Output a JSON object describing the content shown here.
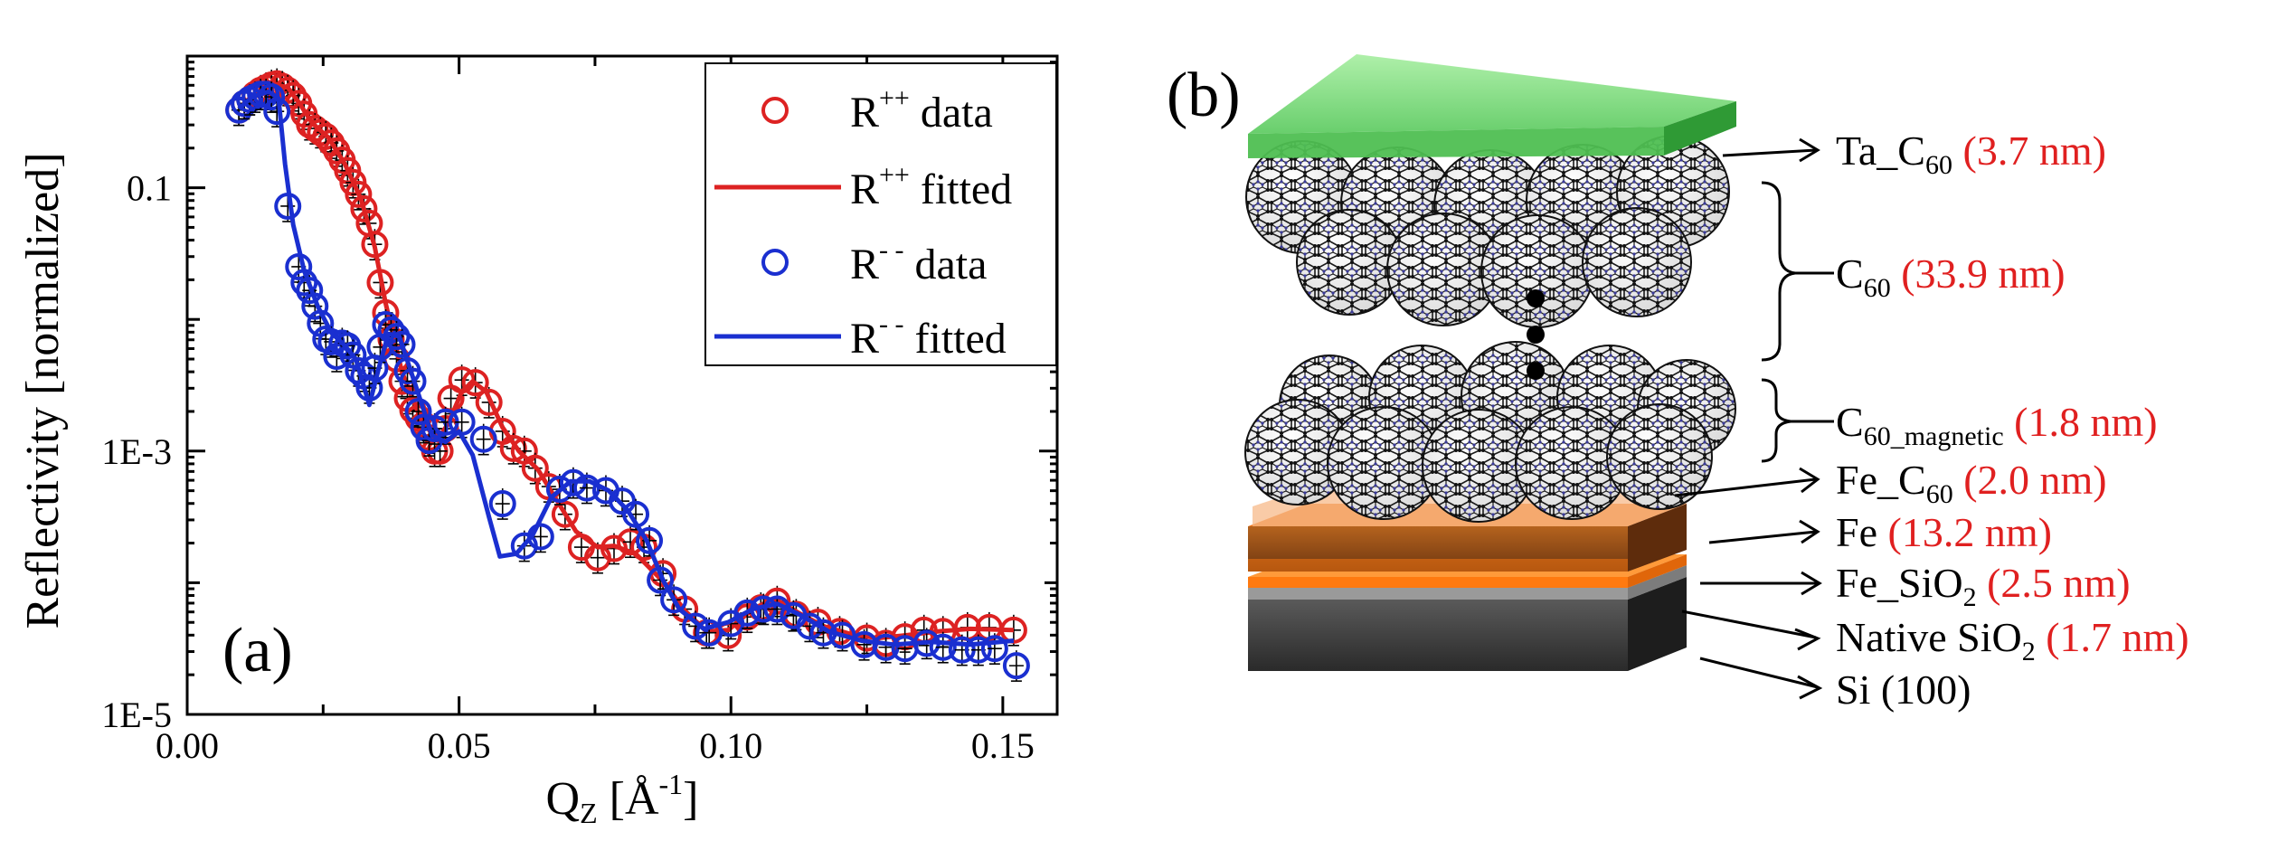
{
  "panel_a": {
    "label": "(a)",
    "chart_data": {
      "type": "line",
      "xlabel": "Q",
      "xlabel_sub": "Z",
      "xlabel_unit": "[Å",
      "xlabel_unit_sup": "-1",
      "xlabel_unit_close": "]",
      "ylabel": "Reflectivity [normalized]",
      "xlim": [
        0.0,
        0.16
      ],
      "ylim_log10": [
        -5,
        0
      ],
      "yscale": "log",
      "x_ticks": [
        {
          "value": 0.0,
          "label": "0.00"
        },
        {
          "value": 0.05,
          "label": "0.05"
        },
        {
          "value": 0.1,
          "label": "0.10"
        },
        {
          "value": 0.15,
          "label": "0.15"
        }
      ],
      "y_ticks": [
        {
          "log10": -1,
          "label": "0.1"
        },
        {
          "log10": -3,
          "label": "1E-3"
        },
        {
          "log10": -5,
          "label": "1E-5"
        }
      ],
      "legend": {
        "position": "top-right",
        "entries": [
          {
            "series": "rpp_data",
            "base": "R",
            "sup": "++",
            "suffix": " data"
          },
          {
            "series": "rpp_fit",
            "base": "R",
            "sup": "++",
            "suffix": " fitted"
          },
          {
            "series": "rmm_data",
            "base": "R",
            "sup": "- -",
            "suffix": " data"
          },
          {
            "series": "rmm_fit",
            "base": "R",
            "sup": "- -",
            "suffix": " fitted"
          }
        ]
      },
      "series": [
        {
          "id": "rpp_data",
          "name": "R++ data",
          "kind": "markers",
          "color": "#dd2222",
          "points": [
            [
              0.0095,
              -0.41
            ],
            [
              0.0105,
              -0.36
            ],
            [
              0.0115,
              -0.33
            ],
            [
              0.0125,
              -0.29
            ],
            [
              0.0135,
              -0.26
            ],
            [
              0.0145,
              -0.24
            ],
            [
              0.0155,
              -0.22
            ],
            [
              0.0165,
              -0.21
            ],
            [
              0.0175,
              -0.23
            ],
            [
              0.0185,
              -0.26
            ],
            [
              0.0195,
              -0.3
            ],
            [
              0.0205,
              -0.36
            ],
            [
              0.0215,
              -0.44
            ],
            [
              0.0225,
              -0.52
            ],
            [
              0.0235,
              -0.55
            ],
            [
              0.0245,
              -0.58
            ],
            [
              0.0255,
              -0.61
            ],
            [
              0.0265,
              -0.66
            ],
            [
              0.0275,
              -0.72
            ],
            [
              0.0285,
              -0.79
            ],
            [
              0.0295,
              -0.87
            ],
            [
              0.0305,
              -0.96
            ],
            [
              0.0315,
              -1.05
            ],
            [
              0.0325,
              -1.16
            ],
            [
              0.0335,
              -1.27
            ],
            [
              0.0345,
              -1.43
            ],
            [
              0.0355,
              -1.72
            ],
            [
              0.0365,
              -1.95
            ],
            [
              0.0375,
              -2.15
            ],
            [
              0.0385,
              -2.3
            ],
            [
              0.0395,
              -2.47
            ],
            [
              0.0405,
              -2.6
            ],
            [
              0.0415,
              -2.69
            ],
            [
              0.0425,
              -2.75
            ],
            [
              0.0435,
              -2.8
            ],
            [
              0.0445,
              -2.9
            ],
            [
              0.0455,
              -3.0
            ],
            [
              0.0465,
              -3.0
            ],
            [
              0.0475,
              -2.83
            ],
            [
              0.0485,
              -2.6
            ],
            [
              0.0505,
              -2.46
            ],
            [
              0.053,
              -2.48
            ],
            [
              0.0555,
              -2.63
            ],
            [
              0.058,
              -2.85
            ],
            [
              0.06,
              -2.98
            ],
            [
              0.062,
              -3.0
            ],
            [
              0.064,
              -3.13
            ],
            [
              0.0665,
              -3.27
            ],
            [
              0.0695,
              -3.48
            ],
            [
              0.0725,
              -3.73
            ],
            [
              0.0755,
              -3.81
            ],
            [
              0.0785,
              -3.74
            ],
            [
              0.0815,
              -3.69
            ],
            [
              0.084,
              -3.73
            ],
            [
              0.0875,
              -3.93
            ],
            [
              0.0915,
              -4.2
            ],
            [
              0.0955,
              -4.38
            ],
            [
              0.0995,
              -4.4
            ],
            [
              0.103,
              -4.26
            ],
            [
              0.1055,
              -4.19
            ],
            [
              0.1085,
              -4.14
            ],
            [
              0.112,
              -4.24
            ],
            [
              0.116,
              -4.3
            ],
            [
              0.12,
              -4.37
            ],
            [
              0.125,
              -4.42
            ],
            [
              0.1285,
              -4.46
            ],
            [
              0.132,
              -4.41
            ],
            [
              0.1355,
              -4.36
            ],
            [
              0.139,
              -4.37
            ],
            [
              0.1435,
              -4.34
            ],
            [
              0.1475,
              -4.34
            ],
            [
              0.152,
              -4.36
            ]
          ]
        },
        {
          "id": "rpp_fit",
          "name": "R++ fitted",
          "kind": "line",
          "color": "#dd2222",
          "points": [
            [
              0.0095,
              -0.4
            ],
            [
              0.012,
              -0.3
            ],
            [
              0.016,
              -0.21
            ],
            [
              0.0185,
              -0.24
            ],
            [
              0.0205,
              -0.35
            ],
            [
              0.023,
              -0.51
            ],
            [
              0.026,
              -0.62
            ],
            [
              0.029,
              -0.82
            ],
            [
              0.032,
              -1.09
            ],
            [
              0.0345,
              -1.45
            ],
            [
              0.0365,
              -1.88
            ],
            [
              0.0395,
              -2.4
            ],
            [
              0.043,
              -2.76
            ],
            [
              0.046,
              -2.92
            ],
            [
              0.048,
              -2.79
            ],
            [
              0.0505,
              -2.55
            ],
            [
              0.0525,
              -2.47
            ],
            [
              0.055,
              -2.55
            ],
            [
              0.058,
              -2.82
            ],
            [
              0.061,
              -3.0
            ],
            [
              0.0645,
              -3.14
            ],
            [
              0.0685,
              -3.41
            ],
            [
              0.0715,
              -3.61
            ],
            [
              0.0755,
              -3.73
            ],
            [
              0.0785,
              -3.72
            ],
            [
              0.0825,
              -3.78
            ],
            [
              0.0875,
              -3.99
            ],
            [
              0.0915,
              -4.21
            ],
            [
              0.0955,
              -4.37
            ],
            [
              0.0995,
              -4.36
            ],
            [
              0.104,
              -4.2
            ],
            [
              0.108,
              -4.12
            ],
            [
              0.1125,
              -4.23
            ],
            [
              0.117,
              -4.33
            ],
            [
              0.122,
              -4.39
            ],
            [
              0.127,
              -4.42
            ],
            [
              0.132,
              -4.4
            ],
            [
              0.138,
              -4.37
            ],
            [
              0.144,
              -4.35
            ],
            [
              0.152,
              -4.36
            ]
          ]
        },
        {
          "id": "rmm_data",
          "name": "R-- data",
          "kind": "markers",
          "color": "#1a2fd0",
          "points": [
            [
              0.0095,
              -0.41
            ],
            [
              0.0105,
              -0.36
            ],
            [
              0.0115,
              -0.33
            ],
            [
              0.0125,
              -0.31
            ],
            [
              0.0135,
              -0.29
            ],
            [
              0.0145,
              -0.29
            ],
            [
              0.0155,
              -0.31
            ],
            [
              0.0165,
              -0.42
            ],
            [
              0.0185,
              -1.14
            ],
            [
              0.0205,
              -1.6
            ],
            [
              0.0215,
              -1.72
            ],
            [
              0.0225,
              -1.78
            ],
            [
              0.0235,
              -1.9
            ],
            [
              0.0245,
              -2.03
            ],
            [
              0.0255,
              -2.15
            ],
            [
              0.0265,
              -2.17
            ],
            [
              0.0275,
              -2.28
            ],
            [
              0.0285,
              -2.18
            ],
            [
              0.0295,
              -2.2
            ],
            [
              0.0305,
              -2.27
            ],
            [
              0.0315,
              -2.39
            ],
            [
              0.0325,
              -2.43
            ],
            [
              0.0335,
              -2.52
            ],
            [
              0.0345,
              -2.37
            ],
            [
              0.0355,
              -2.21
            ],
            [
              0.0365,
              -2.04
            ],
            [
              0.0375,
              -2.08
            ],
            [
              0.0385,
              -2.13
            ],
            [
              0.0395,
              -2.19
            ],
            [
              0.0405,
              -2.39
            ],
            [
              0.0415,
              -2.47
            ],
            [
              0.0425,
              -2.7
            ],
            [
              0.0435,
              -2.82
            ],
            [
              0.0445,
              -2.92
            ],
            [
              0.0455,
              -2.83
            ],
            [
              0.0475,
              -2.78
            ],
            [
              0.0505,
              -2.78
            ],
            [
              0.0545,
              -2.91
            ],
            [
              0.058,
              -3.4
            ],
            [
              0.062,
              -3.72
            ],
            [
              0.065,
              -3.65
            ],
            [
              0.0685,
              -3.29
            ],
            [
              0.071,
              -3.24
            ],
            [
              0.0735,
              -3.28
            ],
            [
              0.077,
              -3.3
            ],
            [
              0.08,
              -3.38
            ],
            [
              0.0825,
              -3.48
            ],
            [
              0.085,
              -3.68
            ],
            [
              0.087,
              -3.98
            ],
            [
              0.0895,
              -4.13
            ],
            [
              0.0935,
              -4.33
            ],
            [
              0.096,
              -4.38
            ],
            [
              0.1,
              -4.31
            ],
            [
              0.103,
              -4.23
            ],
            [
              0.106,
              -4.2
            ],
            [
              0.1085,
              -4.2
            ],
            [
              0.1115,
              -4.25
            ],
            [
              0.1145,
              -4.33
            ],
            [
              0.117,
              -4.38
            ],
            [
              0.1205,
              -4.4
            ],
            [
              0.1245,
              -4.47
            ],
            [
              0.1285,
              -4.49
            ],
            [
              0.132,
              -4.5
            ],
            [
              0.136,
              -4.46
            ],
            [
              0.139,
              -4.49
            ],
            [
              0.1425,
              -4.51
            ],
            [
              0.1455,
              -4.51
            ],
            [
              0.1485,
              -4.5
            ],
            [
              0.1525,
              -4.63
            ]
          ]
        },
        {
          "id": "rmm_fit",
          "name": "R-- fitted",
          "kind": "line",
          "color": "#1a2fd0",
          "points": [
            [
              0.0095,
              -0.4
            ],
            [
              0.012,
              -0.31
            ],
            [
              0.015,
              -0.27
            ],
            [
              0.0168,
              -0.32
            ],
            [
              0.018,
              -0.82
            ],
            [
              0.0195,
              -1.28
            ],
            [
              0.0215,
              -1.63
            ],
            [
              0.024,
              -1.9
            ],
            [
              0.0265,
              -2.1
            ],
            [
              0.029,
              -2.2
            ],
            [
              0.031,
              -2.3
            ],
            [
              0.0335,
              -2.65
            ],
            [
              0.0355,
              -2.33
            ],
            [
              0.037,
              -2.11
            ],
            [
              0.039,
              -2.13
            ],
            [
              0.042,
              -2.5
            ],
            [
              0.045,
              -2.88
            ],
            [
              0.0475,
              -2.93
            ],
            [
              0.05,
              -2.85
            ],
            [
              0.0525,
              -3.03
            ],
            [
              0.0555,
              -3.5
            ],
            [
              0.0575,
              -3.8
            ],
            [
              0.0605,
              -3.78
            ],
            [
              0.0635,
              -3.64
            ],
            [
              0.067,
              -3.35
            ],
            [
              0.0705,
              -3.23
            ],
            [
              0.074,
              -3.23
            ],
            [
              0.0775,
              -3.3
            ],
            [
              0.081,
              -3.45
            ],
            [
              0.0845,
              -3.68
            ],
            [
              0.0875,
              -3.98
            ],
            [
              0.0905,
              -4.2
            ],
            [
              0.095,
              -4.35
            ],
            [
              0.0995,
              -4.3
            ],
            [
              0.104,
              -4.2
            ],
            [
              0.1085,
              -4.16
            ],
            [
              0.113,
              -4.25
            ],
            [
              0.118,
              -4.37
            ],
            [
              0.124,
              -4.44
            ],
            [
              0.13,
              -4.47
            ],
            [
              0.137,
              -4.45
            ],
            [
              0.144,
              -4.47
            ],
            [
              0.152,
              -4.44
            ]
          ]
        }
      ]
    }
  },
  "panel_b": {
    "label": "(b)",
    "layers": [
      {
        "id": "ta",
        "base": "Ta_C",
        "sub": "60",
        "rest": "",
        "thickness": "(3.7 nm)"
      },
      {
        "id": "c60",
        "base": "C",
        "sub": "60",
        "rest": "",
        "thickness": "(33.9 nm)"
      },
      {
        "id": "c60mag",
        "base": "C",
        "sub": "60_magnetic",
        "rest": "",
        "thickness": "(1.8 nm)"
      },
      {
        "id": "fec60",
        "base": "Fe_C",
        "sub": "60",
        "rest": "",
        "thickness": "(2.0 nm)"
      },
      {
        "id": "fe",
        "base": "Fe",
        "sub": "",
        "rest": "",
        "thickness": "(13.2 nm)"
      },
      {
        "id": "fesio2",
        "base": "Fe_SiO",
        "sub": "2",
        "rest": "",
        "thickness": "(2.5 nm)"
      },
      {
        "id": "sio2",
        "base": "Native SiO",
        "sub": "2",
        "rest": "",
        "thickness": "(1.7 nm)"
      },
      {
        "id": "si",
        "base": "Si (100)",
        "sub": "",
        "rest": "",
        "thickness": ""
      }
    ],
    "colors": {
      "ta": "#7ed67e",
      "fe": "#f07a1e",
      "fec60": "#f7b98a",
      "sio2": "#bdbdbd",
      "si": "#3c3c3c",
      "thickness_text": "#e02020"
    }
  }
}
